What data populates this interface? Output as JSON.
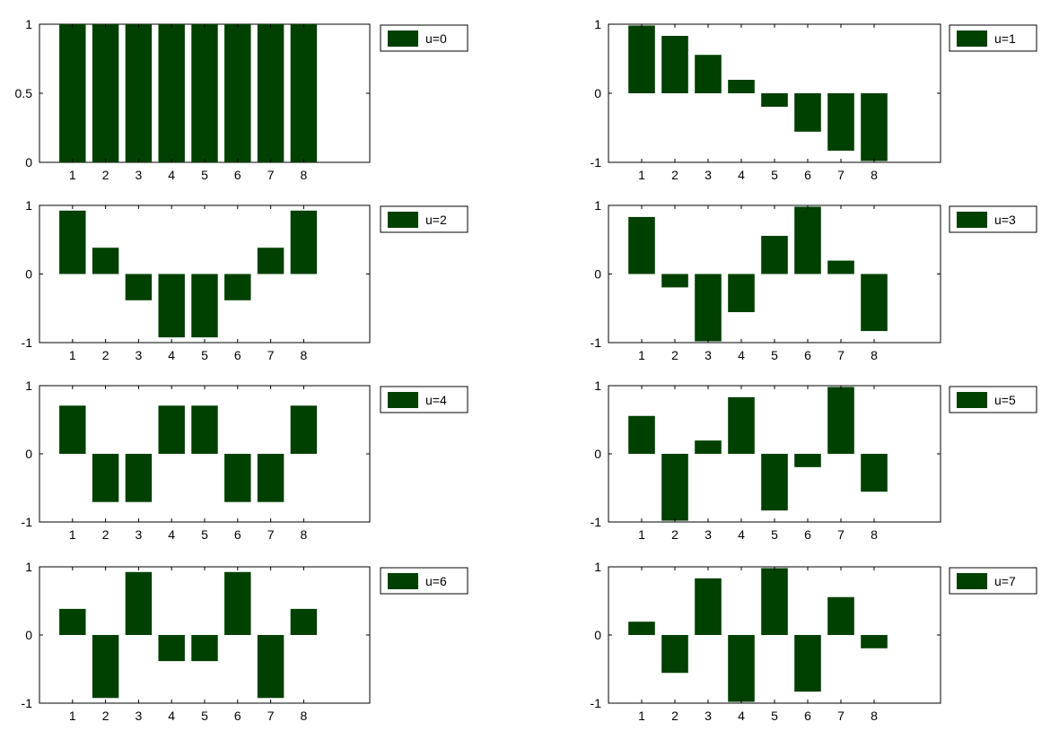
{
  "colors": {
    "bar": "#004000",
    "axes": "#000000",
    "background": "#ffffff"
  },
  "chart_data": [
    {
      "type": "bar",
      "legend": "u=0",
      "legend_placement": "outside-top-right",
      "categories": [
        1,
        2,
        3,
        4,
        5,
        6,
        7,
        8
      ],
      "values": [
        1,
        1,
        1,
        1,
        1,
        1,
        1,
        1
      ],
      "xlim": [
        0,
        10
      ],
      "ylim": [
        0,
        1
      ],
      "yticks": [
        "0",
        "0.5",
        "1"
      ],
      "ytick_values": [
        0,
        0.5,
        1
      ],
      "grid": false
    },
    {
      "type": "bar",
      "legend": "u=1",
      "legend_placement": "outside-top-right",
      "categories": [
        1,
        2,
        3,
        4,
        5,
        6,
        7,
        8
      ],
      "values": [
        0.981,
        0.831,
        0.556,
        0.195,
        -0.195,
        -0.556,
        -0.831,
        -0.981
      ],
      "xlim": [
        0,
        10
      ],
      "ylim": [
        -1,
        1
      ],
      "yticks": [
        "-1",
        "0",
        "1"
      ],
      "ytick_values": [
        -1,
        0,
        1
      ],
      "grid": false
    },
    {
      "type": "bar",
      "legend": "u=2",
      "legend_placement": "outside-top-right",
      "categories": [
        1,
        2,
        3,
        4,
        5,
        6,
        7,
        8
      ],
      "values": [
        0.924,
        0.383,
        -0.383,
        -0.924,
        -0.924,
        -0.383,
        0.383,
        0.924
      ],
      "xlim": [
        0,
        10
      ],
      "ylim": [
        -1,
        1
      ],
      "yticks": [
        "-1",
        "0",
        "1"
      ],
      "ytick_values": [
        -1,
        0,
        1
      ],
      "grid": false
    },
    {
      "type": "bar",
      "legend": "u=3",
      "legend_placement": "outside-top-right",
      "categories": [
        1,
        2,
        3,
        4,
        5,
        6,
        7,
        8
      ],
      "values": [
        0.831,
        -0.195,
        -0.981,
        -0.556,
        0.556,
        0.981,
        0.195,
        -0.831
      ],
      "xlim": [
        0,
        10
      ],
      "ylim": [
        -1,
        1
      ],
      "yticks": [
        "-1",
        "0",
        "1"
      ],
      "ytick_values": [
        -1,
        0,
        1
      ],
      "grid": false
    },
    {
      "type": "bar",
      "legend": "u=4",
      "legend_placement": "outside-top-right",
      "categories": [
        1,
        2,
        3,
        4,
        5,
        6,
        7,
        8
      ],
      "values": [
        0.707,
        -0.707,
        -0.707,
        0.707,
        0.707,
        -0.707,
        -0.707,
        0.707
      ],
      "xlim": [
        0,
        10
      ],
      "ylim": [
        -1,
        1
      ],
      "yticks": [
        "-1",
        "0",
        "1"
      ],
      "ytick_values": [
        -1,
        0,
        1
      ],
      "grid": false
    },
    {
      "type": "bar",
      "legend": "u=5",
      "legend_placement": "outside-top-right",
      "categories": [
        1,
        2,
        3,
        4,
        5,
        6,
        7,
        8
      ],
      "values": [
        0.556,
        -0.981,
        0.195,
        0.831,
        -0.831,
        -0.195,
        0.981,
        -0.556
      ],
      "xlim": [
        0,
        10
      ],
      "ylim": [
        -1,
        1
      ],
      "yticks": [
        "-1",
        "0",
        "1"
      ],
      "ytick_values": [
        -1,
        0,
        1
      ],
      "grid": false
    },
    {
      "type": "bar",
      "legend": "u=6",
      "legend_placement": "outside-top-right",
      "categories": [
        1,
        2,
        3,
        4,
        5,
        6,
        7,
        8
      ],
      "values": [
        0.383,
        -0.924,
        0.924,
        -0.383,
        -0.383,
        0.924,
        -0.924,
        0.383
      ],
      "xlim": [
        0,
        10
      ],
      "ylim": [
        -1,
        1
      ],
      "yticks": [
        "-1",
        "0",
        "1"
      ],
      "ytick_values": [
        -1,
        0,
        1
      ],
      "grid": false
    },
    {
      "type": "bar",
      "legend": "u=7",
      "legend_placement": "outside-top-right",
      "categories": [
        1,
        2,
        3,
        4,
        5,
        6,
        7,
        8
      ],
      "values": [
        0.195,
        -0.556,
        0.831,
        -0.981,
        0.981,
        -0.831,
        0.556,
        -0.195
      ],
      "xlim": [
        0,
        10
      ],
      "ylim": [
        -1,
        1
      ],
      "yticks": [
        "-1",
        "0",
        "1"
      ],
      "ytick_values": [
        -1,
        0,
        1
      ],
      "grid": false
    }
  ]
}
